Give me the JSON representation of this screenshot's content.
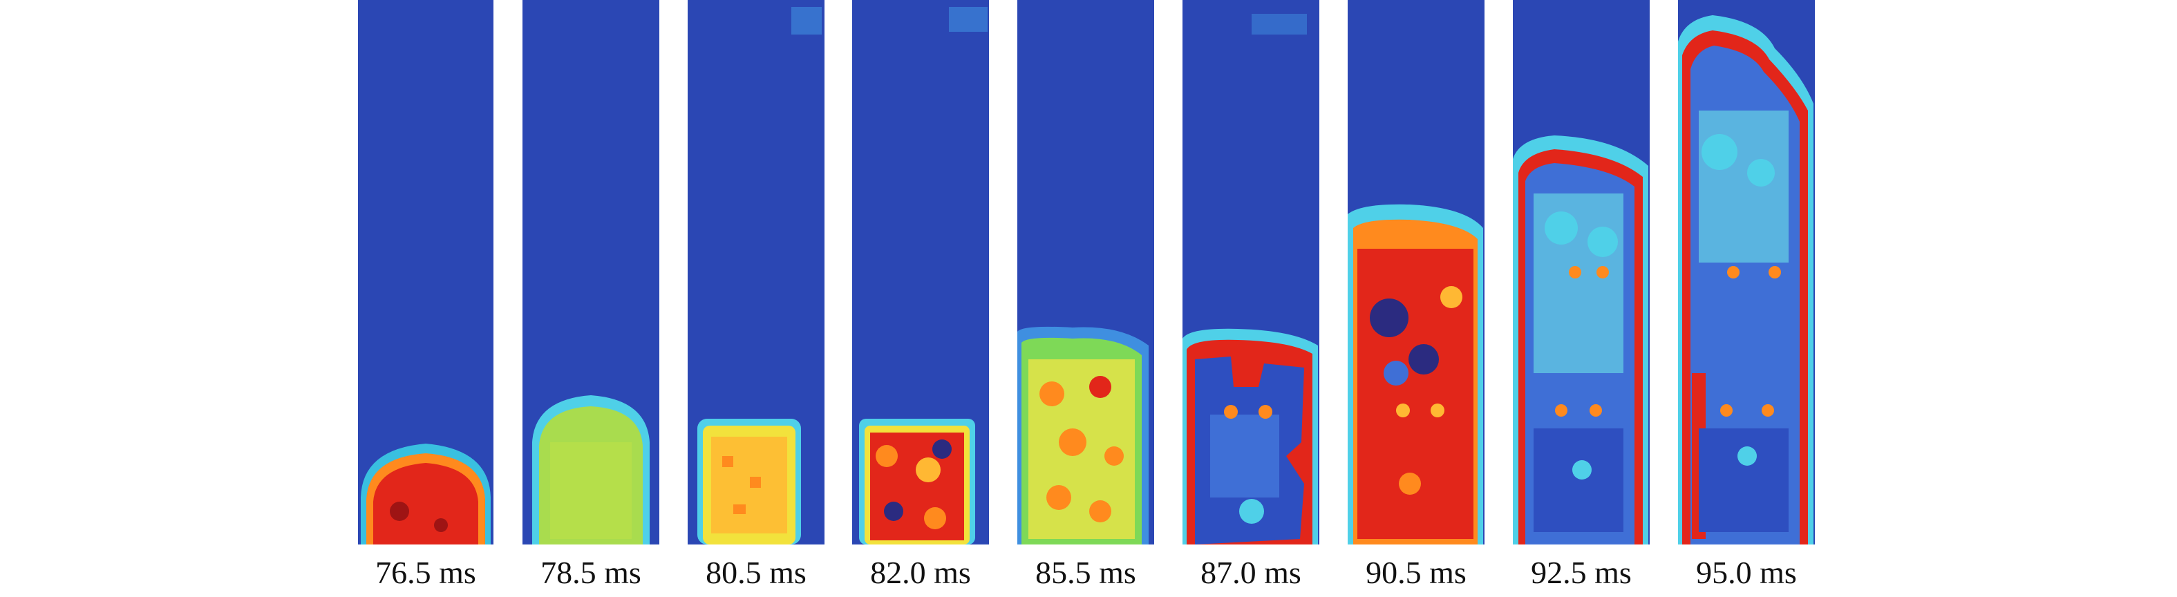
{
  "frames": [
    {
      "label": "76.5 ms"
    },
    {
      "label": "78.5 ms"
    },
    {
      "label": "80.5 ms"
    },
    {
      "label": "82.0 ms"
    },
    {
      "label": "85.5 ms"
    },
    {
      "label": "87.0 ms"
    },
    {
      "label": "90.5 ms"
    },
    {
      "label": "92.5 ms"
    },
    {
      "label": "95.0 ms"
    }
  ],
  "colors": {
    "background_blue": "#2b47b4",
    "light_blue": "#3f8fe0",
    "cyan": "#4fd0e8",
    "green": "#7ed957",
    "yellow_green": "#b8e04a",
    "yellow": "#f2e23c",
    "orange": "#ff8a1e",
    "red": "#e2261a",
    "dark_red": "#8e1010"
  }
}
